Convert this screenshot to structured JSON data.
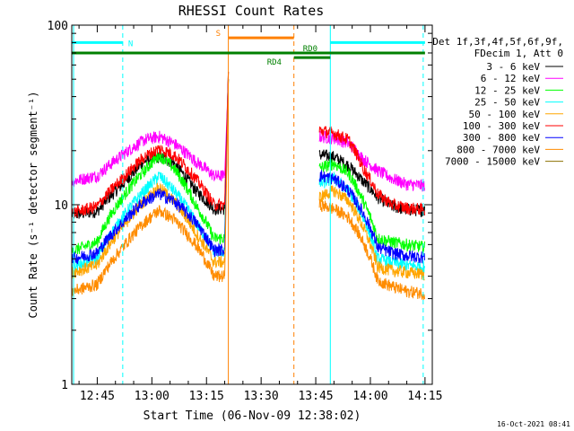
{
  "chart_data": {
    "type": "line",
    "title": "RHESSI Count Rates",
    "xlabel": "Start Time (06-Nov-09 12:38:02)",
    "ylabel": "Count Rate (s⁻¹ detector segment⁻¹)",
    "yscale": "log",
    "ylim": [
      1,
      100
    ],
    "xlim": [
      "12:38",
      "14:17"
    ],
    "x_ticks": [
      "12:45",
      "13:00",
      "13:15",
      "13:30",
      "13:45",
      "14:00",
      "14:15"
    ],
    "y_ticks": [
      "1",
      "10",
      "100"
    ],
    "grid": false,
    "legend_position": "right",
    "legend_header": [
      "Det 1f,3f,4f,5f,6f,9f,",
      "FDecim 1, Att 0"
    ],
    "timestamp": "16-Oct-2021 08:41",
    "series": [
      {
        "name": "3 - 6 keV",
        "color": "#000000",
        "x": [
          "12:38",
          "12:45",
          "12:52",
          "12:58",
          "13:02",
          "13:06",
          "13:12",
          "13:17",
          "13:20",
          "13:21",
          "13:46",
          "13:50",
          "13:54",
          "13:58",
          "14:02",
          "14:06",
          "14:10",
          "14:15"
        ],
        "values": [
          8.8,
          9.2,
          13,
          17.5,
          18.5,
          17,
          12,
          9.5,
          9.5,
          55,
          19,
          18.5,
          16.5,
          13.5,
          11,
          9.8,
          9.4,
          9.3
        ]
      },
      {
        "name": "6 - 12 keV",
        "color": "#ff00ff",
        "x": [
          "12:38",
          "12:45",
          "12:52",
          "12:58",
          "13:02",
          "13:06",
          "13:12",
          "13:17",
          "13:20",
          "13:21",
          "13:46",
          "13:50",
          "13:54",
          "13:58",
          "14:02",
          "14:06",
          "14:10",
          "14:15"
        ],
        "values": [
          13.5,
          14.5,
          19,
          23,
          24,
          22,
          17.5,
          14.5,
          14.5,
          50,
          24,
          23.5,
          22,
          18,
          15.5,
          14,
          13,
          12.8
        ]
      },
      {
        "name": "12 - 25 keV",
        "color": "#00ff00",
        "x": [
          "12:38",
          "12:45",
          "12:52",
          "12:58",
          "13:02",
          "13:06",
          "13:12",
          "13:17",
          "13:20",
          "13:21",
          "13:46",
          "13:50",
          "13:54",
          "13:58",
          "14:02",
          "14:06",
          "14:10",
          "14:15"
        ],
        "values": [
          5.5,
          6.2,
          11,
          15.5,
          19,
          16,
          10,
          6.5,
          6.5,
          50,
          16,
          17,
          15,
          10.5,
          6.5,
          6.2,
          6,
          5.8
        ]
      },
      {
        "name": "25 - 50 keV",
        "color": "#00ffff",
        "x": [
          "12:38",
          "12:45",
          "12:52",
          "12:58",
          "13:02",
          "13:06",
          "13:12",
          "13:17",
          "13:20",
          "13:21",
          "13:46",
          "13:50",
          "13:54",
          "13:58",
          "14:02",
          "14:06",
          "14:10",
          "14:15"
        ],
        "values": [
          4.5,
          5,
          8.5,
          12,
          14.5,
          12,
          8,
          5.5,
          5.5,
          50,
          13,
          14,
          12,
          8.5,
          5,
          4.8,
          4.6,
          4.5
        ]
      },
      {
        "name": "50 - 100 keV",
        "color": "#ffa500",
        "x": [
          "12:38",
          "12:45",
          "12:52",
          "12:58",
          "13:02",
          "13:06",
          "13:12",
          "13:17",
          "13:20",
          "13:21",
          "13:46",
          "13:50",
          "13:54",
          "13:58",
          "14:02",
          "14:06",
          "14:10",
          "14:15"
        ],
        "values": [
          4.2,
          4.6,
          7.5,
          10.5,
          12.5,
          10.5,
          7,
          4.8,
          4.8,
          50,
          11,
          12,
          10.5,
          7.5,
          4.5,
          4.3,
          4.2,
          4.1
        ]
      },
      {
        "name": "100 - 300 keV",
        "color": "#ff0000",
        "x": [
          "12:38",
          "12:45",
          "12:52",
          "12:58",
          "13:02",
          "13:06",
          "13:12",
          "13:17",
          "13:20",
          "13:21",
          "13:46",
          "13:50",
          "13:54",
          "13:58",
          "14:02",
          "14:06",
          "14:10",
          "14:15"
        ],
        "values": [
          9,
          9.8,
          14,
          18.5,
          20.5,
          19,
          14,
          10,
          10,
          55,
          26,
          25,
          23,
          16,
          11.5,
          10,
          9.6,
          9.4
        ]
      },
      {
        "name": "300 - 800 keV",
        "color": "#0000ff",
        "x": [
          "12:38",
          "12:45",
          "12:52",
          "12:58",
          "13:02",
          "13:06",
          "13:12",
          "13:17",
          "13:20",
          "13:21",
          "13:46",
          "13:50",
          "13:54",
          "13:58",
          "14:02",
          "14:06",
          "14:10",
          "14:15"
        ],
        "values": [
          5,
          5.4,
          8,
          10.5,
          11.5,
          10.5,
          8,
          5.6,
          5.6,
          50,
          14.5,
          14,
          12,
          9,
          5.8,
          5.4,
          5.2,
          5.1
        ]
      },
      {
        "name": "800 - 7000 keV",
        "color": "#ff8c00",
        "x": [
          "12:38",
          "12:45",
          "12:52",
          "12:58",
          "13:02",
          "13:06",
          "13:12",
          "13:17",
          "13:20",
          "13:21",
          "13:46",
          "13:50",
          "13:54",
          "13:58",
          "14:02",
          "14:06",
          "14:10",
          "14:15"
        ],
        "values": [
          3.3,
          3.6,
          5.8,
          8,
          9.3,
          8.3,
          6,
          4,
          4,
          50,
          10,
          9.5,
          8.5,
          6.2,
          3.8,
          3.5,
          3.3,
          3.2
        ]
      },
      {
        "name": "7000 - 15000 keV",
        "color": "#8b7000",
        "x": [],
        "values": []
      }
    ],
    "annotations": {
      "flags": [
        {
          "label": "N",
          "color": "#00ffff",
          "x_start": "12:38",
          "x_end": "12:52",
          "level": 80,
          "level2_x": "13:49",
          "level2_x_end": "14:15"
        },
        {
          "label": "S",
          "color": "#ff8000",
          "x_start": "13:21",
          "x_end": "13:39",
          "level": 85
        },
        {
          "label": "RD0",
          "color": "#008000",
          "x_start": "12:38",
          "x_end": "14:15",
          "level": 70
        },
        {
          "label": "RD4",
          "color": "#008000",
          "x_start": "13:39",
          "x_end": "13:49",
          "level": 66
        }
      ],
      "vlines": [
        {
          "x": "12:38.5",
          "color": "#00ffff",
          "style": "solid"
        },
        {
          "x": "12:52",
          "color": "#00ffff",
          "style": "dashed"
        },
        {
          "x": "13:21",
          "color": "#ff8000",
          "style": "solid"
        },
        {
          "x": "13:39",
          "color": "#ff8000",
          "style": "dashed"
        },
        {
          "x": "13:49",
          "color": "#00ffff",
          "style": "solid"
        },
        {
          "x": "14:14.5",
          "color": "#00ffff",
          "style": "dashed"
        }
      ],
      "gap": {
        "x_start": "13:21",
        "x_end": "13:46"
      }
    }
  }
}
